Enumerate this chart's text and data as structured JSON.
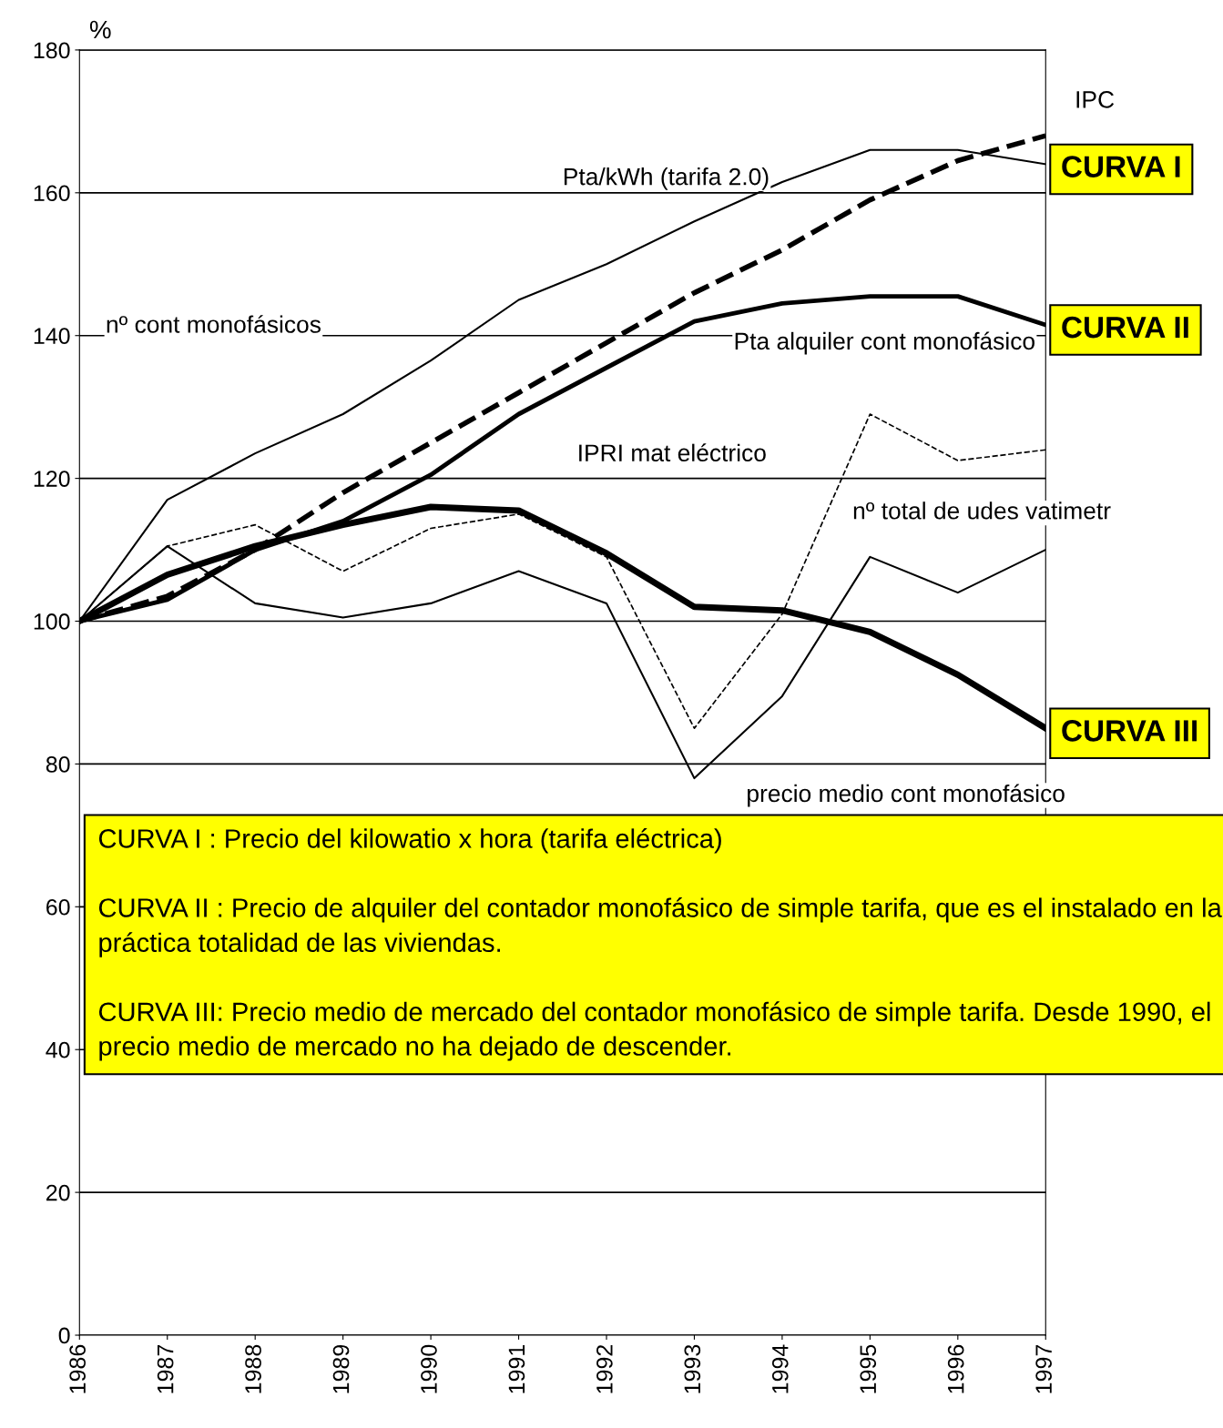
{
  "chart_data": {
    "type": "line",
    "ylabel": "%",
    "x": [
      1986,
      1987,
      1988,
      1989,
      1990,
      1991,
      1992,
      1993,
      1994,
      1995,
      1996,
      1997
    ],
    "xlim": [
      1986,
      1997
    ],
    "xticks": [
      1986,
      1987,
      1988,
      1989,
      1990,
      1991,
      1992,
      1993,
      1994,
      1995,
      1996,
      1997
    ],
    "ylim": [
      0,
      180
    ],
    "yticks": [
      0,
      20,
      40,
      60,
      80,
      100,
      120,
      140,
      160,
      180
    ],
    "grid": "y",
    "legend": false,
    "series": [
      {
        "name": "CURVA I",
        "color": "#000000",
        "line_style": "solid",
        "values": [
          100,
          117,
          123.5,
          129,
          136.5,
          145,
          150,
          156,
          161.5,
          166,
          166,
          164
        ]
      },
      {
        "color": "#000000",
        "line_style": "dashed",
        "values": [
          100,
          103.5,
          110,
          118,
          125,
          132,
          139,
          146,
          152,
          159,
          164.5,
          168
        ]
      },
      {
        "name": "CURVA II",
        "color": "#000000",
        "line_style": "solid",
        "values": [
          100,
          103,
          110,
          114,
          120.5,
          129,
          135.5,
          142,
          144.5,
          145.5,
          145.5,
          141.5
        ]
      },
      {
        "color": "#000000",
        "line_style": "dashed",
        "values": [
          100,
          110.5,
          113.5,
          107,
          113,
          115,
          109,
          85,
          101,
          129,
          122.5,
          124
        ]
      },
      {
        "color": "#000000",
        "line_style": "solid",
        "values": [
          100,
          110.5,
          102.5,
          100.5,
          102.5,
          107,
          102.5,
          78,
          89.5,
          109,
          104,
          110
        ]
      },
      {
        "name": "CURVA III",
        "color": "#000000",
        "line_style": "solid",
        "values": [
          100,
          106.5,
          110.5,
          113.5,
          116,
          115.5,
          109.5,
          102,
          101.5,
          98.5,
          92.5,
          85
        ]
      }
    ],
    "annotations": [
      "IPC",
      "Pta/kWh (tarifa 2.0)",
      "nº cont monofásicos",
      "Pta alquiler cont monofásico",
      "IPRI mat eléctrico",
      "nº total de udes vatimetr",
      "precio medio cont monofásico",
      "CURVA I : Precio del kilowatio x hora (tarifa eléctrica)",
      "CURVA II : Precio de alquiler del contador monofásico de simple tarifa, que es el instalado en la práctica totalidad de las viviendas.",
      "CURVA III: Precio medio de mercado del contador monofásico de simple tarifa. Desde 1990, el precio medio de mercado no ha dejado de descender."
    ]
  }
}
